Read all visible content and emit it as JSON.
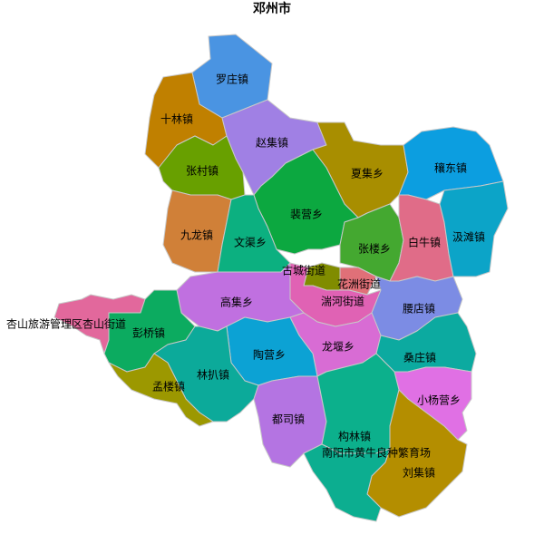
{
  "title": "邓州市",
  "regions": [
    {
      "name": "罗庄镇",
      "color": "#4a94e2"
    },
    {
      "name": "十林镇",
      "color": "#c08000"
    },
    {
      "name": "赵集镇",
      "color": "#a080e4"
    },
    {
      "name": "张村镇",
      "color": "#68a000"
    },
    {
      "name": "夏集乡",
      "color": "#a88e00"
    },
    {
      "name": "穰东镇",
      "color": "#0c9ee0"
    },
    {
      "name": "裴营乡",
      "color": "#0ca840"
    },
    {
      "name": "九龙镇",
      "color": "#d08038"
    },
    {
      "name": "文渠乡",
      "color": "#0cb080"
    },
    {
      "name": "张楼乡",
      "color": "#44a830"
    },
    {
      "name": "白牛镇",
      "color": "#e06c88"
    },
    {
      "name": "汲滩镇",
      "color": "#0ca4c8"
    },
    {
      "name": "古城街道",
      "color": "#808c00"
    },
    {
      "name": "花洲街道",
      "color": "#e07078"
    },
    {
      "name": "湍河街道",
      "color": "#e062b4"
    },
    {
      "name": "腰店镇",
      "color": "#7c8ce4"
    },
    {
      "name": "高集乡",
      "color": "#c070e0"
    },
    {
      "name": "龙堰乡",
      "color": "#d86cd4"
    },
    {
      "name": "杏山旅游管理区杏山街道",
      "color": "#e2689c"
    },
    {
      "name": "彭桥镇",
      "color": "#0cab60"
    },
    {
      "name": "桑庄镇",
      "color": "#0caaa0"
    },
    {
      "name": "陶营乡",
      "color": "#0ca2d4"
    },
    {
      "name": "林扒镇",
      "color": "#0caa9a"
    },
    {
      "name": "孟楼镇",
      "color": "#9c9800"
    },
    {
      "name": "小杨营乡",
      "color": "#e070e4"
    },
    {
      "name": "都司镇",
      "color": "#b474e2"
    },
    {
      "name": "构林镇",
      "color": "#0cb08c"
    },
    {
      "name": "刘集镇",
      "color": "#b48e00"
    },
    {
      "name": "南阳市黄牛良种繁育场",
      "color": "#0cae90"
    }
  ]
}
